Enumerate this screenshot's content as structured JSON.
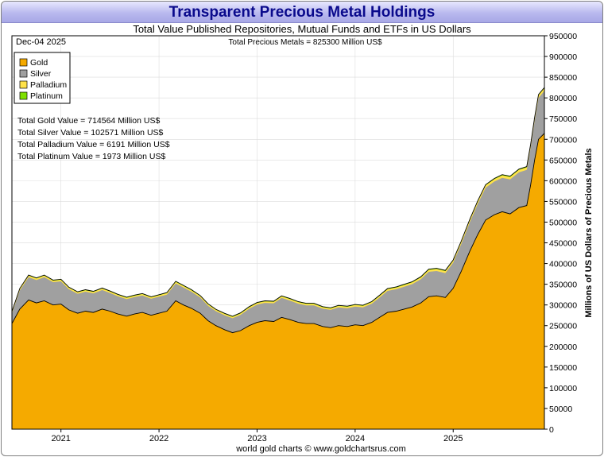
{
  "header": {
    "title": "Transparent Precious Metal Holdings",
    "subtitle": "Total Value Published Repositories, Mutual Funds and ETFs in US Dollars"
  },
  "chart_data": {
    "type": "area",
    "stacked": true,
    "date_label": "Dec-04  2025",
    "total_label": "Total Precious Metals = 825300 Million US$",
    "ylabel": "Millions of US Dollars of Precious Metals",
    "ylim": [
      0,
      950000
    ],
    "xlim": [
      2020.5,
      2025.93
    ],
    "y_ticks": [
      0,
      50000,
      100000,
      150000,
      200000,
      250000,
      300000,
      350000,
      400000,
      450000,
      500000,
      550000,
      600000,
      650000,
      700000,
      750000,
      800000,
      850000,
      900000,
      950000
    ],
    "x_ticks": [
      "2021",
      "2022",
      "2023",
      "2024",
      "2025"
    ],
    "x_tick_positions": [
      2021,
      2022,
      2023,
      2024,
      2025
    ],
    "legend": [
      {
        "name": "Gold",
        "color": "#f5aa00"
      },
      {
        "name": "Silver",
        "color": "#a0a0a0"
      },
      {
        "name": "Palladium",
        "color": "#ffe24a"
      },
      {
        "name": "Platinum",
        "color": "#7fe000"
      }
    ],
    "stats": [
      "Total Gold Value = 714564 Million US$",
      "Total Silver Value = 102571 Million US$",
      "Total Palladium Value = 6191 Million US$",
      "Total Platinum Value = 1973 Million US$"
    ],
    "x": [
      2020.5,
      2020.58,
      2020.67,
      2020.75,
      2020.83,
      2020.92,
      2021.0,
      2021.08,
      2021.17,
      2021.25,
      2021.33,
      2021.42,
      2021.5,
      2021.58,
      2021.67,
      2021.75,
      2021.83,
      2021.92,
      2022.0,
      2022.08,
      2022.17,
      2022.25,
      2022.33,
      2022.42,
      2022.5,
      2022.58,
      2022.67,
      2022.75,
      2022.83,
      2022.92,
      2023.0,
      2023.08,
      2023.17,
      2023.25,
      2023.33,
      2023.42,
      2023.5,
      2023.58,
      2023.67,
      2023.75,
      2023.83,
      2023.92,
      2024.0,
      2024.08,
      2024.17,
      2024.25,
      2024.33,
      2024.42,
      2024.5,
      2024.58,
      2024.67,
      2024.75,
      2024.83,
      2024.92,
      2025.0,
      2025.08,
      2025.17,
      2025.25,
      2025.33,
      2025.42,
      2025.5,
      2025.58,
      2025.67,
      2025.75,
      2025.79,
      2025.83,
      2025.87,
      2025.93
    ],
    "series": [
      {
        "name": "Gold",
        "color": "#f5aa00",
        "values": [
          255000,
          290000,
          312000,
          305000,
          310000,
          300000,
          302000,
          288000,
          280000,
          285000,
          282000,
          290000,
          285000,
          278000,
          273000,
          278000,
          282000,
          275000,
          280000,
          285000,
          310000,
          300000,
          292000,
          280000,
          262000,
          250000,
          240000,
          233000,
          238000,
          250000,
          258000,
          262000,
          260000,
          270000,
          265000,
          258000,
          255000,
          255000,
          248000,
          245000,
          250000,
          248000,
          252000,
          250000,
          258000,
          270000,
          282000,
          285000,
          290000,
          295000,
          305000,
          320000,
          322000,
          318000,
          340000,
          380000,
          430000,
          470000,
          505000,
          518000,
          525000,
          520000,
          535000,
          540000,
          590000,
          650000,
          700000,
          714564
        ]
      },
      {
        "name": "Silver",
        "color": "#a0a0a0",
        "values": [
          25000,
          45000,
          55000,
          55000,
          57000,
          55000,
          55000,
          50000,
          47000,
          47000,
          46000,
          46000,
          44000,
          43000,
          41000,
          41000,
          41000,
          40000,
          40000,
          40000,
          42000,
          42000,
          40000,
          38000,
          36000,
          35000,
          35000,
          35000,
          38000,
          41000,
          43000,
          43000,
          44000,
          47000,
          46000,
          45000,
          44000,
          44000,
          43000,
          43000,
          44000,
          44000,
          44000,
          44000,
          45000,
          48000,
          52000,
          53000,
          54000,
          55000,
          57000,
          60000,
          60000,
          59000,
          62000,
          66000,
          70000,
          74000,
          78000,
          80000,
          82000,
          83000,
          85000,
          86000,
          90000,
          95000,
          100000,
          102571
        ]
      },
      {
        "name": "Palladium",
        "color": "#ffe24a",
        "values": [
          3000,
          3500,
          3800,
          3800,
          3800,
          3700,
          3700,
          3600,
          3500,
          3500,
          3500,
          3500,
          3400,
          3300,
          3300,
          3300,
          3300,
          3300,
          3400,
          3500,
          3700,
          3600,
          3500,
          3400,
          3300,
          3200,
          3200,
          3200,
          3300,
          3400,
          3500,
          3500,
          3500,
          3600,
          3600,
          3500,
          3500,
          3500,
          3500,
          3500,
          3600,
          3600,
          3700,
          3700,
          3800,
          3900,
          4000,
          4100,
          4200,
          4300,
          4400,
          4600,
          4700,
          4700,
          4900,
          5100,
          5300,
          5500,
          5600,
          5700,
          5800,
          5900,
          6000,
          6100,
          6100,
          6150,
          6180,
          6191
        ]
      },
      {
        "name": "Platinum",
        "color": "#7fe000",
        "values": [
          1200,
          1300,
          1400,
          1400,
          1400,
          1400,
          1400,
          1400,
          1400,
          1400,
          1400,
          1400,
          1400,
          1400,
          1400,
          1400,
          1400,
          1400,
          1400,
          1400,
          1500,
          1500,
          1500,
          1500,
          1500,
          1500,
          1500,
          1500,
          1500,
          1500,
          1500,
          1500,
          1500,
          1500,
          1500,
          1500,
          1500,
          1500,
          1500,
          1500,
          1500,
          1500,
          1500,
          1500,
          1500,
          1600,
          1600,
          1600,
          1600,
          1600,
          1700,
          1700,
          1700,
          1700,
          1700,
          1800,
          1800,
          1800,
          1800,
          1900,
          1900,
          1900,
          1900,
          1950,
          1950,
          1960,
          1970,
          1973
        ]
      }
    ],
    "credit": "world gold charts © www.goldchartsrus.com"
  }
}
